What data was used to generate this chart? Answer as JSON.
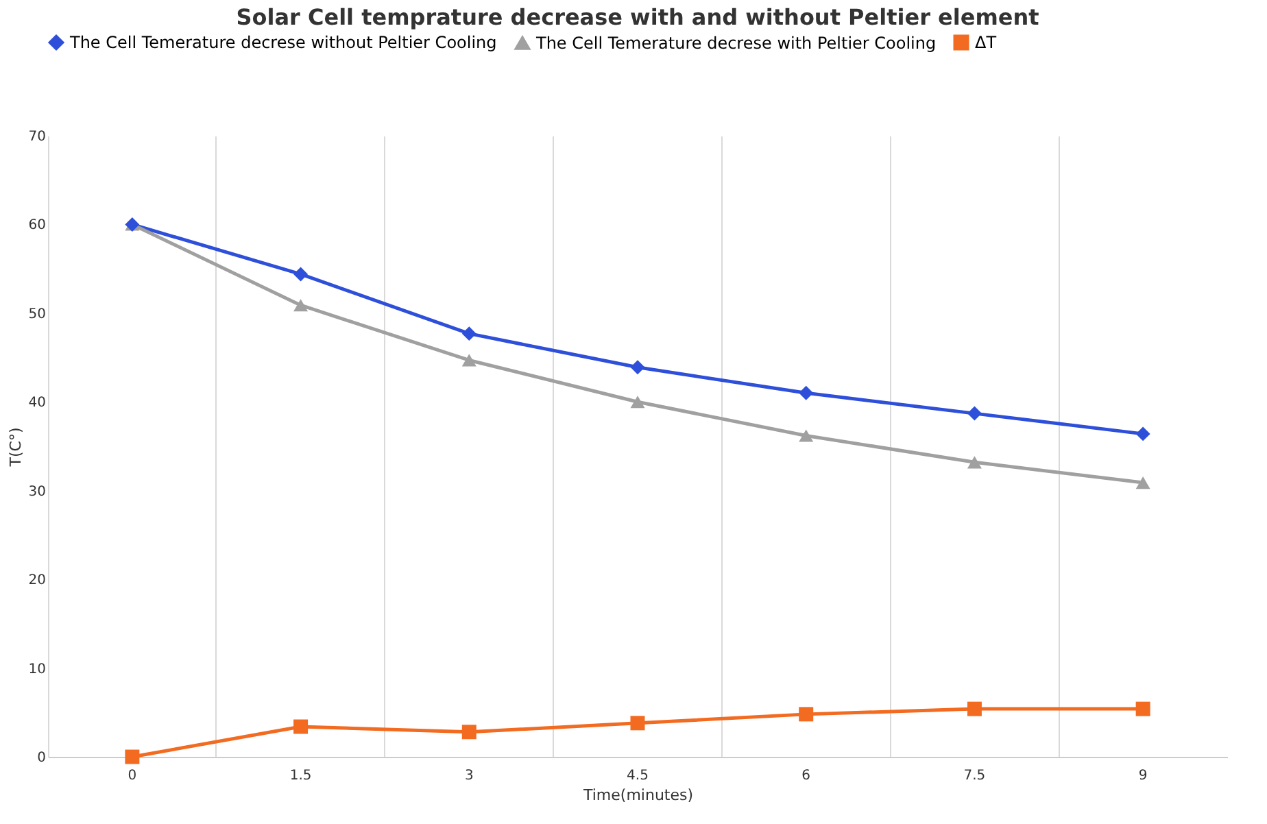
{
  "chart_data": {
    "type": "line",
    "title": "Solar Cell temprature decrease with and without Peltier element",
    "xlabel": "Time(minutes)",
    "ylabel": "T(C°)",
    "categories": [
      "0",
      "1.5",
      "3",
      "4.5",
      "6",
      "7.5",
      "9"
    ],
    "series": [
      {
        "name": "The Cell Temerature decrese without Peltier Cooling",
        "color": "#2e4fd9",
        "marker": "diamond",
        "values": [
          60,
          54.4,
          47.7,
          43.9,
          41.0,
          38.7,
          36.4
        ]
      },
      {
        "name": "The Cell Temerature decrese with Peltier Cooling",
        "color": "#a0a0a0",
        "marker": "triangle",
        "values": [
          60,
          50.9,
          44.7,
          40.0,
          36.2,
          33.2,
          30.9
        ]
      },
      {
        "name": "ΔT",
        "color": "#f26b21",
        "marker": "square",
        "values": [
          0,
          3.4,
          2.8,
          3.8,
          4.8,
          5.4,
          5.4
        ]
      }
    ],
    "ylim": [
      0,
      70
    ],
    "yticks": [
      0,
      10,
      20,
      30,
      40,
      50,
      60,
      70
    ],
    "grid": "x",
    "legend": "top"
  }
}
